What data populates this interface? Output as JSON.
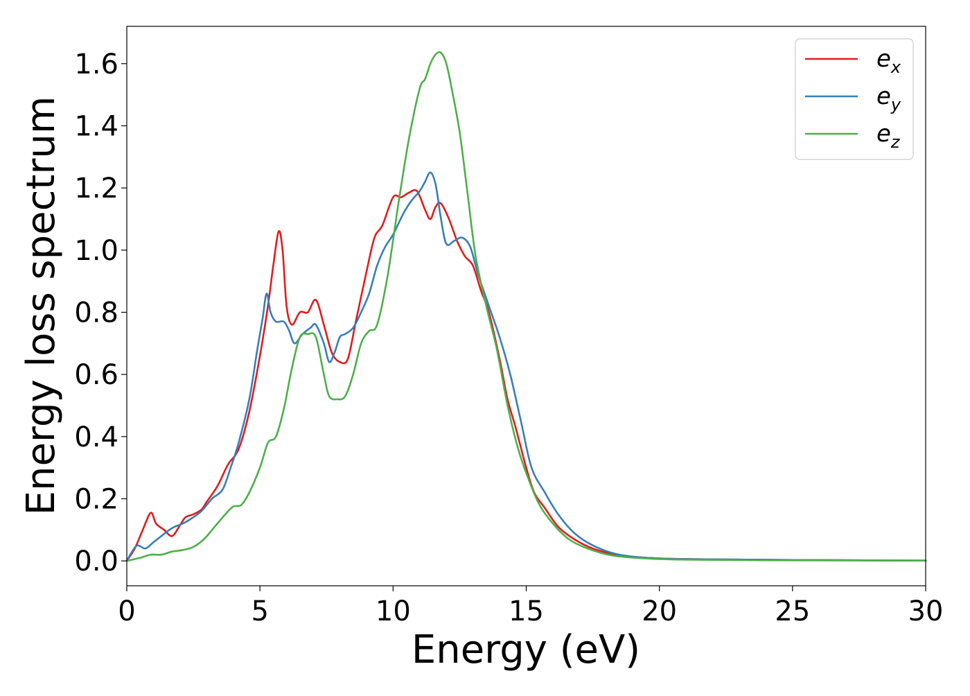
{
  "chart_data": {
    "type": "line",
    "title": "",
    "xlabel": "Energy (eV)",
    "ylabel": "Energy loss spectrum",
    "xlim": [
      0,
      30
    ],
    "ylim": [
      -0.08,
      1.72
    ],
    "xticks": [
      0,
      5,
      10,
      15,
      20,
      25,
      30
    ],
    "yticks": [
      0.0,
      0.2,
      0.4,
      0.6,
      0.8,
      1.0,
      1.2,
      1.4,
      1.6
    ],
    "xtick_labels": [
      "0",
      "5",
      "10",
      "15",
      "20",
      "25",
      "30"
    ],
    "ytick_labels": [
      "0.0",
      "0.2",
      "0.4",
      "0.6",
      "0.8",
      "1.0",
      "1.2",
      "1.4",
      "1.6"
    ],
    "grid": false,
    "legend_position": "top-right",
    "series": [
      {
        "name": "e",
        "subscript": "x",
        "color": "#e41a1c",
        "x": [
          0,
          0.3,
          0.6,
          0.9,
          1.1,
          1.4,
          1.7,
          2.0,
          2.2,
          2.5,
          2.8,
          3.0,
          3.4,
          3.8,
          4.2,
          4.6,
          5.0,
          5.3,
          5.5,
          5.7,
          5.85,
          6.0,
          6.2,
          6.5,
          6.8,
          7.1,
          7.4,
          7.7,
          8.0,
          8.3,
          8.6,
          9.0,
          9.3,
          9.6,
          10.0,
          10.3,
          10.6,
          10.9,
          11.2,
          11.4,
          11.6,
          11.8,
          12.1,
          12.4,
          12.7,
          13.0,
          13.3,
          13.6,
          14.0,
          14.3,
          14.6,
          15.0,
          15.3,
          15.7,
          16.2,
          16.8,
          17.5,
          18.5,
          20,
          22,
          25,
          30
        ],
        "values": [
          0.0,
          0.04,
          0.1,
          0.155,
          0.12,
          0.1,
          0.08,
          0.115,
          0.14,
          0.15,
          0.165,
          0.19,
          0.24,
          0.31,
          0.36,
          0.48,
          0.66,
          0.82,
          0.95,
          1.06,
          1.0,
          0.82,
          0.76,
          0.8,
          0.8,
          0.84,
          0.76,
          0.67,
          0.64,
          0.65,
          0.77,
          0.93,
          1.04,
          1.08,
          1.17,
          1.17,
          1.185,
          1.19,
          1.13,
          1.1,
          1.14,
          1.15,
          1.1,
          1.03,
          0.98,
          0.95,
          0.87,
          0.8,
          0.65,
          0.52,
          0.43,
          0.3,
          0.22,
          0.17,
          0.11,
          0.07,
          0.04,
          0.018,
          0.008,
          0.005,
          0.003,
          0.001
        ]
      },
      {
        "name": "e",
        "subscript": "y",
        "color": "#377eb8",
        "x": [
          0,
          0.2,
          0.4,
          0.7,
          1.0,
          1.3,
          1.6,
          1.8,
          2.1,
          2.4,
          2.8,
          3.2,
          3.6,
          3.9,
          4.2,
          4.6,
          4.9,
          5.1,
          5.25,
          5.4,
          5.6,
          5.9,
          6.1,
          6.3,
          6.6,
          6.9,
          7.1,
          7.4,
          7.6,
          7.8,
          8.0,
          8.2,
          8.5,
          8.8,
          9.1,
          9.4,
          9.7,
          10.0,
          10.4,
          10.7,
          11.0,
          11.2,
          11.4,
          11.6,
          11.8,
          12.0,
          12.3,
          12.6,
          12.9,
          13.2,
          13.6,
          14.0,
          14.4,
          14.8,
          15.2,
          15.7,
          16.2,
          16.8,
          17.5,
          18.5,
          20,
          22,
          25,
          30
        ],
        "values": [
          0.0,
          0.03,
          0.05,
          0.04,
          0.06,
          0.08,
          0.1,
          0.11,
          0.12,
          0.135,
          0.16,
          0.2,
          0.23,
          0.3,
          0.38,
          0.52,
          0.68,
          0.78,
          0.86,
          0.8,
          0.77,
          0.77,
          0.74,
          0.7,
          0.73,
          0.75,
          0.76,
          0.7,
          0.64,
          0.67,
          0.72,
          0.73,
          0.75,
          0.8,
          0.86,
          0.95,
          1.01,
          1.05,
          1.12,
          1.16,
          1.19,
          1.22,
          1.25,
          1.21,
          1.1,
          1.02,
          1.03,
          1.04,
          1.01,
          0.92,
          0.82,
          0.72,
          0.6,
          0.45,
          0.3,
          0.22,
          0.15,
          0.09,
          0.05,
          0.02,
          0.008,
          0.005,
          0.003,
          0.001
        ]
      },
      {
        "name": "e",
        "subscript": "z",
        "color": "#4daf4a",
        "x": [
          0,
          0.5,
          0.9,
          1.3,
          1.7,
          2.1,
          2.5,
          2.9,
          3.3,
          3.7,
          4.0,
          4.3,
          4.6,
          5.0,
          5.3,
          5.6,
          5.9,
          6.2,
          6.5,
          6.8,
          7.1,
          7.4,
          7.6,
          7.9,
          8.2,
          8.5,
          8.8,
          9.1,
          9.4,
          9.8,
          10.2,
          10.6,
          11.0,
          11.2,
          11.4,
          11.6,
          11.8,
          12.0,
          12.2,
          12.5,
          12.8,
          13.1,
          13.5,
          13.9,
          14.3,
          14.7,
          15.1,
          15.5,
          16.0,
          16.6,
          17.3,
          18.2,
          19.5,
          21,
          24,
          30
        ],
        "values": [
          0.0,
          0.01,
          0.02,
          0.02,
          0.03,
          0.035,
          0.045,
          0.07,
          0.11,
          0.15,
          0.175,
          0.18,
          0.22,
          0.3,
          0.38,
          0.4,
          0.49,
          0.62,
          0.72,
          0.73,
          0.72,
          0.6,
          0.53,
          0.52,
          0.53,
          0.6,
          0.7,
          0.74,
          0.76,
          0.92,
          1.15,
          1.36,
          1.52,
          1.55,
          1.6,
          1.63,
          1.635,
          1.6,
          1.52,
          1.38,
          1.18,
          0.98,
          0.82,
          0.68,
          0.5,
          0.36,
          0.26,
          0.18,
          0.12,
          0.07,
          0.04,
          0.018,
          0.008,
          0.004,
          0.002,
          0.001
        ]
      }
    ]
  }
}
